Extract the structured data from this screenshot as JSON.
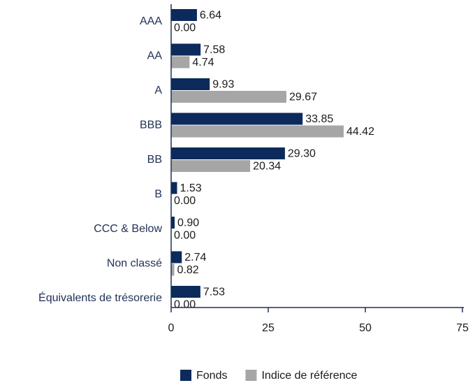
{
  "chart_data": {
    "type": "hbar",
    "categories": [
      "AAA",
      "AA",
      "A",
      "BBB",
      "BB",
      "B",
      "CCC & Below",
      "Non classé",
      "Équivalents de trésorerie"
    ],
    "series": [
      {
        "name": "Fonds",
        "color": "#0c2a5b",
        "values": [
          6.64,
          7.58,
          9.93,
          33.85,
          29.3,
          1.53,
          0.9,
          2.74,
          7.53
        ],
        "value_labels": [
          "6.64",
          "7.58",
          "9.93",
          "33.85",
          "29.30",
          "1.53",
          "0.90",
          "2.74",
          "7.53"
        ]
      },
      {
        "name": "Indice de référence",
        "color": "#a6a6a6",
        "values": [
          0,
          4.74,
          29.67,
          44.42,
          20.34,
          0,
          0,
          0.82,
          0
        ],
        "value_labels": [
          "0.00",
          "4.74",
          "29.67",
          "44.42",
          "20.34",
          "0.00",
          "0.00",
          "0.82",
          "0.00"
        ]
      }
    ],
    "xlim": [
      0,
      75
    ],
    "xticks": [
      0,
      25,
      50,
      75
    ],
    "legend": "bottom"
  }
}
